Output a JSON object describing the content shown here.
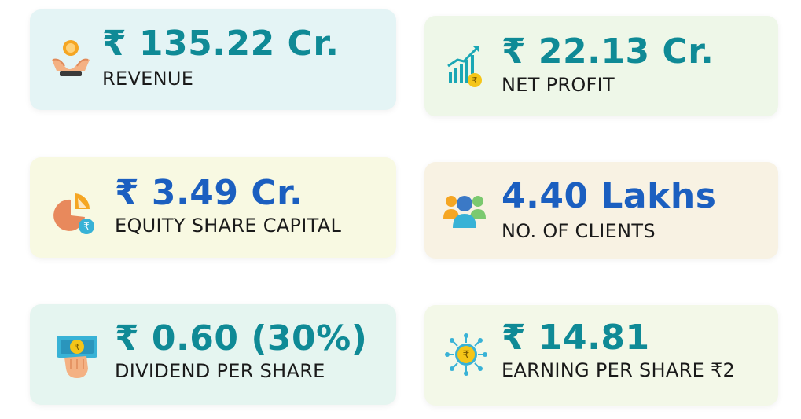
{
  "cards": [
    {
      "value": "₹ 135.22 Cr.",
      "label": "REVENUE",
      "icon": "hand-coin-icon"
    },
    {
      "value": "₹ 22.13 Cr.",
      "label": "NET PROFIT",
      "icon": "growth-chart-icon"
    },
    {
      "value": "₹ 3.49 Cr.",
      "label": "EQUITY SHARE CAPITAL",
      "icon": "pie-chart-rupee-icon"
    },
    {
      "value": "4.40 Lakhs",
      "label": "NO. OF CLIENTS",
      "icon": "users-group-icon"
    },
    {
      "value": "₹ 0.60 (30%)",
      "label": "DIVIDEND PER SHARE",
      "icon": "hand-banknote-icon"
    },
    {
      "value": "₹ 14.81",
      "label": "EARNING PER SHARE ₹2",
      "icon": "rupee-network-icon"
    }
  ],
  "colors": {
    "value_teal": "#0f8a96",
    "value_blue": "#1b5fc0"
  }
}
